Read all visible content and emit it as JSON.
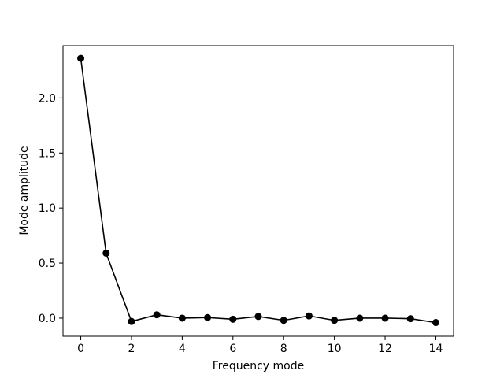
{
  "chart_data": {
    "type": "line",
    "title": "",
    "xlabel": "Frequency mode",
    "ylabel": "Mode amplitude",
    "xlim": [
      -0.7,
      14.7
    ],
    "ylim": [
      -0.165,
      2.475
    ],
    "xticks": [
      0,
      2,
      4,
      6,
      8,
      10,
      12,
      14
    ],
    "xtick_labels": [
      "0",
      "2",
      "4",
      "6",
      "8",
      "10",
      "12",
      "14"
    ],
    "yticks": [
      0.0,
      0.5,
      1.0,
      1.5,
      2.0
    ],
    "ytick_labels": [
      "0.0",
      "0.5",
      "1.0",
      "1.5",
      "2.0"
    ],
    "grid": false,
    "series": [
      {
        "color": "#000000",
        "marker": "circle",
        "x": [
          0,
          1,
          2,
          3,
          4,
          5,
          6,
          7,
          8,
          9,
          10,
          11,
          12,
          13,
          14
        ],
        "y": [
          2.36,
          0.59,
          -0.03,
          0.03,
          0.0,
          0.005,
          -0.01,
          0.015,
          -0.02,
          0.02,
          -0.02,
          0.0,
          0.0,
          -0.005,
          -0.04
        ]
      }
    ]
  }
}
